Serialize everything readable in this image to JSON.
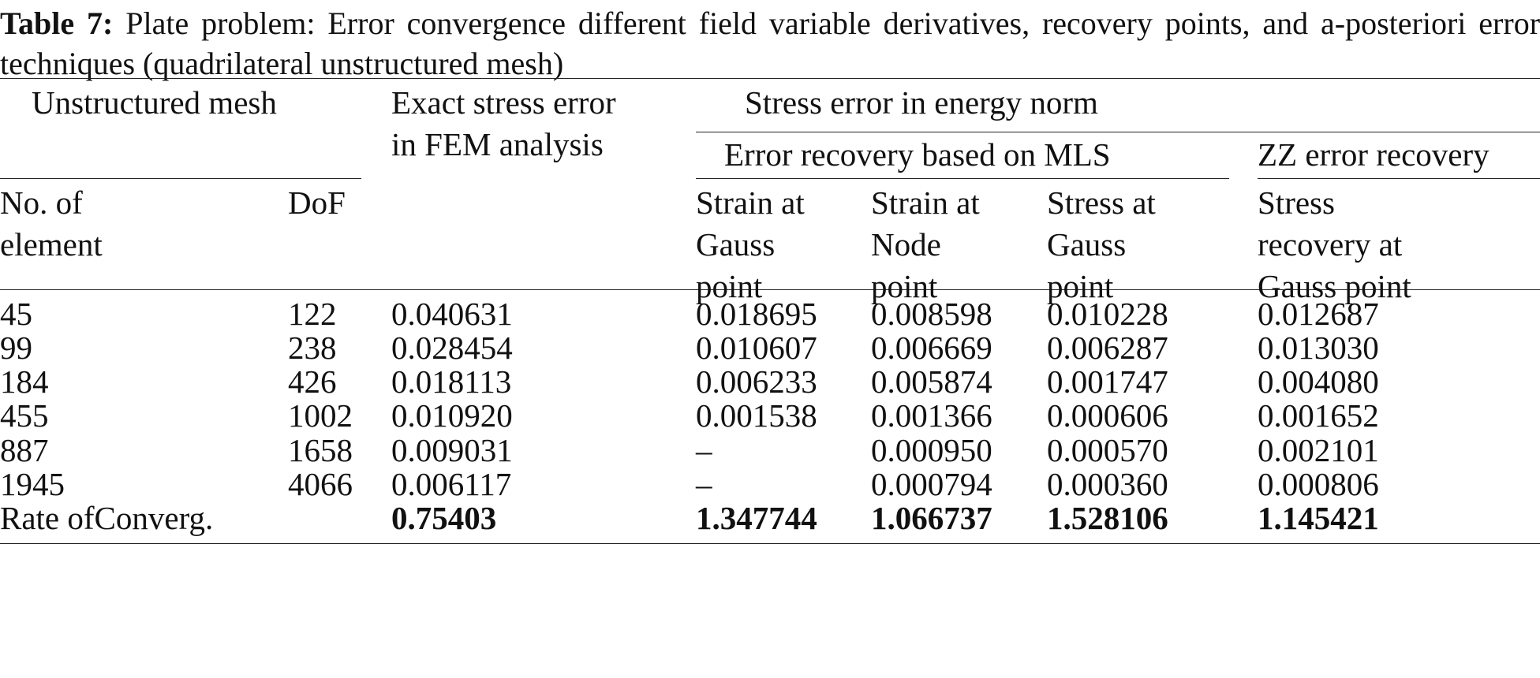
{
  "caption": {
    "label": "Table 7:",
    "text": "Plate problem: Error convergence different field variable derivatives, recovery points, and a-posteriori error techniques (quadrilateral unstructured mesh)"
  },
  "headers": {
    "unstructured_mesh": "Unstructured mesh",
    "exact_error": "Exact stress error\nin FEM analysis",
    "energy_norm": "Stress error in energy norm",
    "mls": "Error recovery based on MLS",
    "zz": "ZZ error recovery",
    "no_element": "No. of\nelement",
    "dof": "DoF",
    "strain_gauss": "Strain at\nGauss\npoint",
    "strain_node": "Strain at\nNode\npoint",
    "stress_gauss": "Stress at\nGauss\npoint",
    "zz_stress": "Stress\nrecovery at\nGauss point"
  },
  "rows": [
    {
      "elements": "45",
      "dof": "122",
      "exact": "0.040631",
      "sg": "0.018695",
      "sn": "0.008598",
      "stg": "0.010228",
      "zz": "0.012687"
    },
    {
      "elements": "99",
      "dof": "238",
      "exact": "0.028454",
      "sg": "0.010607",
      "sn": "0.006669",
      "stg": "0.006287",
      "zz": "0.013030"
    },
    {
      "elements": "184",
      "dof": "426",
      "exact": "0.018113",
      "sg": "0.006233",
      "sn": "0.005874",
      "stg": "0.001747",
      "zz": "0.004080"
    },
    {
      "elements": "455",
      "dof": "1002",
      "exact": "0.010920",
      "sg": "0.001538",
      "sn": "0.001366",
      "stg": "0.000606",
      "zz": "0.001652"
    },
    {
      "elements": "887",
      "dof": "1658",
      "exact": "0.009031",
      "sg": "–",
      "sn": "0.000950",
      "stg": "0.000570",
      "zz": "0.002101"
    },
    {
      "elements": "1945",
      "dof": "4066",
      "exact": "0.006117",
      "sg": "–",
      "sn": "0.000794",
      "stg": "0.000360",
      "zz": "0.000806"
    }
  ],
  "rate_row": {
    "label": "Rate ofConverg.",
    "exact": "0.75403",
    "sg": "1.347744",
    "sn": "1.066737",
    "stg": "1.528106",
    "zz": "1.145421"
  }
}
